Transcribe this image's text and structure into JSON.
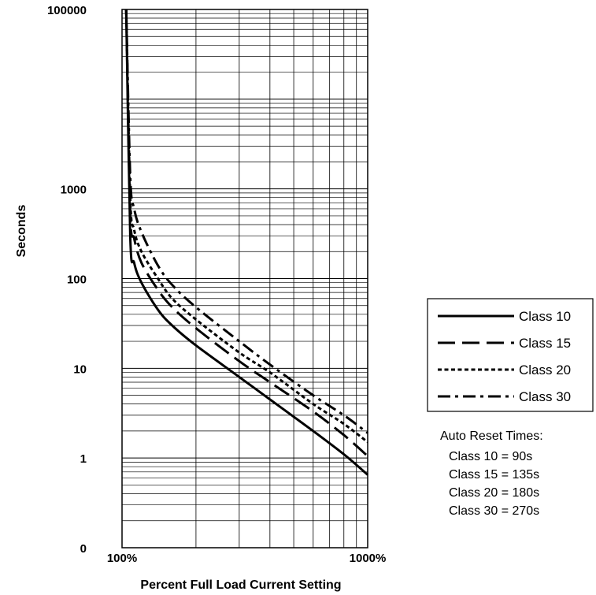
{
  "chart_data": {
    "type": "line",
    "title": "",
    "xlabel": "Percent Full Load Current Setting",
    "ylabel": "Seconds",
    "x_scale": "log",
    "y_scale": "log",
    "xlim": [
      100,
      1000
    ],
    "ylim": [
      0.1,
      100000
    ],
    "grid": true,
    "x_tick_labels": [
      "100%",
      "1000%"
    ],
    "y_tick_labels": [
      {
        "value": 100000,
        "label": "100000"
      },
      {
        "value": 1000,
        "label": "1000"
      },
      {
        "value": 100,
        "label": "100"
      },
      {
        "value": 10,
        "label": "10"
      },
      {
        "value": 1,
        "label": "1"
      },
      {
        "value": 0.1,
        "label": "0"
      }
    ],
    "legend_position": "right",
    "series": [
      {
        "name": "Class 10",
        "style": "solid",
        "color": "#000000",
        "x": [
          104,
          108,
          112,
          120,
          140,
          160,
          200,
          300,
          400,
          600,
          800,
          1000
        ],
        "y": [
          100000,
          300,
          150,
          90,
          45,
          30,
          18,
          8,
          4.5,
          2,
          1.1,
          0.65
        ]
      },
      {
        "name": "Class 15",
        "style": "dashed",
        "color": "#000000",
        "x": [
          104,
          108,
          112,
          120,
          140,
          160,
          200,
          300,
          400,
          600,
          800,
          1000
        ],
        "y": [
          100000,
          550,
          280,
          150,
          75,
          48,
          28,
          12,
          7,
          3.3,
          1.8,
          1.05
        ]
      },
      {
        "name": "Class 20",
        "style": "dotted",
        "color": "#000000",
        "x": [
          104,
          108,
          112,
          120,
          140,
          160,
          200,
          300,
          400,
          600,
          800,
          1000
        ],
        "y": [
          100000,
          800,
          350,
          200,
          100,
          60,
          35,
          15,
          9,
          4,
          2.4,
          1.5
        ]
      },
      {
        "name": "Class 30",
        "style": "dash-dot",
        "color": "#000000",
        "x": [
          104,
          108,
          112,
          120,
          140,
          160,
          200,
          300,
          400,
          600,
          800,
          1000
        ],
        "y": [
          100000,
          1400,
          600,
          330,
          140,
          85,
          48,
          20,
          11,
          5,
          3,
          1.9
        ]
      }
    ]
  },
  "legend": {
    "items": [
      {
        "label": "Class 10",
        "style": "solid"
      },
      {
        "label": "Class 15",
        "style": "dashed"
      },
      {
        "label": "Class 20",
        "style": "dotted"
      },
      {
        "label": "Class 30",
        "style": "dash-dot"
      }
    ]
  },
  "reset_times": {
    "heading": "Auto Reset Times:",
    "lines": [
      "Class 10 = 90s",
      "Class 15 = 135s",
      "Class 20 = 180s",
      "Class 30 = 270s"
    ]
  }
}
